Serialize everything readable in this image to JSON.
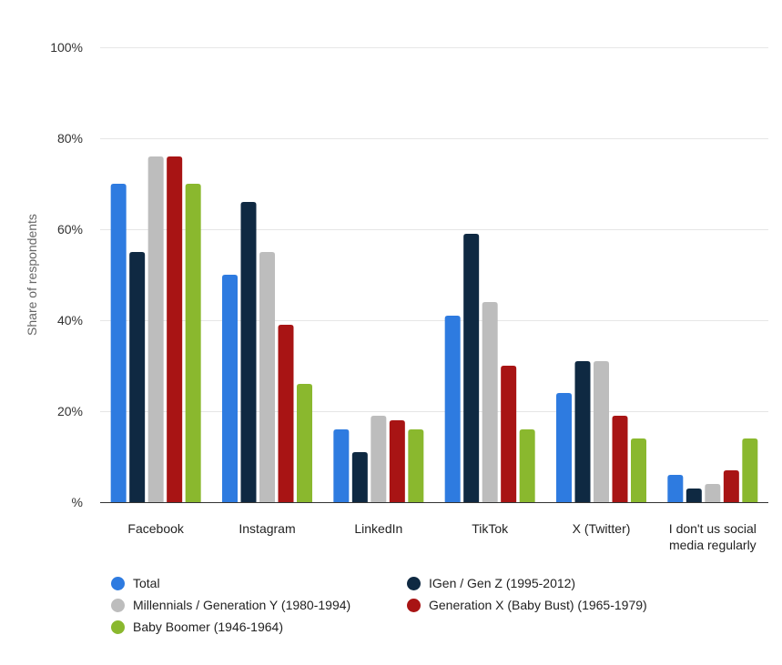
{
  "chart_data": {
    "type": "bar",
    "ylabel": "Share of respondents",
    "ylim": [
      0,
      100
    ],
    "yticks": [
      "%",
      "20%",
      "40%",
      "60%",
      "80%",
      "100%"
    ],
    "categories": [
      [
        "Facebook"
      ],
      [
        "Instagram"
      ],
      [
        "LinkedIn"
      ],
      [
        "TikTok"
      ],
      [
        "X (Twitter)"
      ],
      [
        "I don't us social",
        "media regularly"
      ]
    ],
    "series": [
      {
        "name": "Total",
        "color": "#2e7be0",
        "values": [
          70,
          50,
          16,
          41,
          24,
          6
        ]
      },
      {
        "name": "IGen / Gen Z (1995-2012)",
        "color": "#0f2942",
        "values": [
          55,
          66,
          11,
          59,
          31,
          3
        ]
      },
      {
        "name": "Millennials / Generation Y (1980-1994)",
        "color": "#bdbdbd",
        "values": [
          76,
          55,
          19,
          44,
          31,
          4
        ]
      },
      {
        "name": "Generation X (Baby Bust) (1965-1979)",
        "color": "#a81414",
        "values": [
          76,
          39,
          18,
          30,
          19,
          7
        ]
      },
      {
        "name": "Baby Boomer (1946-1964)",
        "color": "#8ab82e",
        "values": [
          70,
          26,
          16,
          16,
          14,
          14
        ]
      }
    ]
  }
}
